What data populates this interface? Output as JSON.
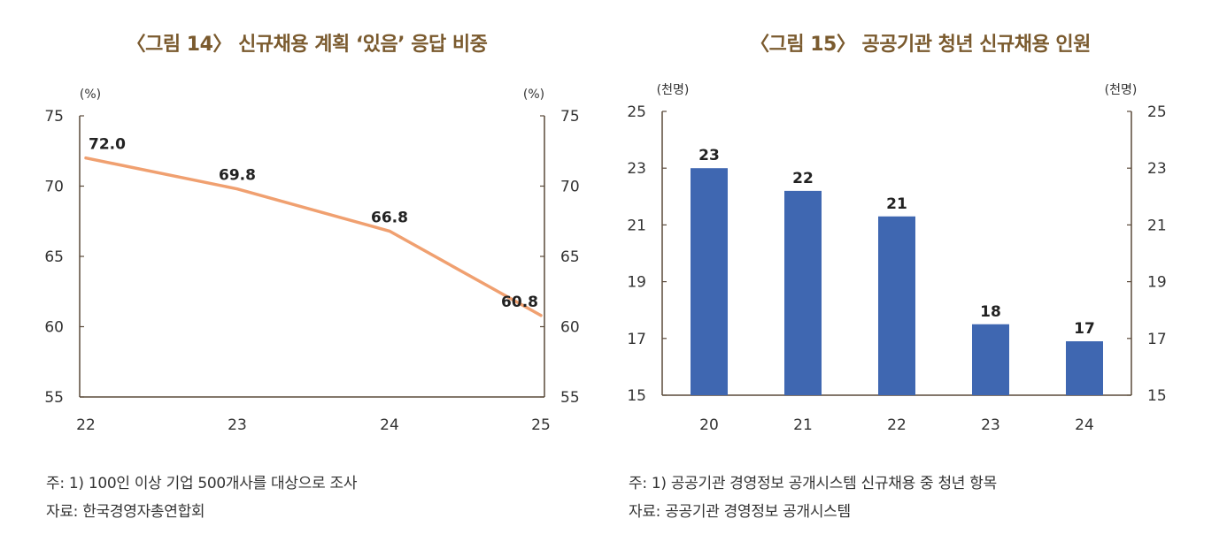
{
  "charts": [
    {
      "title": "〈그림 14〉 신규채용 계획 ‘있음’ 응답 비중",
      "note1": "주: 1) 100인 이상 기업 500개사를 대상으로 조사",
      "note2": "자료: 한국경영자총연합회"
    },
    {
      "title": "〈그림 15〉 공공기관 청년 신규채용 인원",
      "note1": "주: 1) 공공기관 경영정보 공개시스템 신규채용 중 청년 항목",
      "note2": "자료: 공공기관 경영정보 공개시스템"
    }
  ],
  "chart_data": [
    {
      "type": "line",
      "title": "〈그림 14〉 신규채용 계획 ‘있음’ 응답 비중",
      "x": [
        "22",
        "23",
        "24",
        "25"
      ],
      "series": [
        {
          "values": [
            72.0,
            69.8,
            66.8,
            60.8
          ],
          "labels": [
            "72.0",
            "69.8",
            "66.8",
            "60.8"
          ],
          "color": "#f0a070"
        }
      ],
      "yunit_left": "(%)",
      "yunit_right": "(%)",
      "ylim": [
        55,
        75
      ],
      "yticks": [
        "55",
        "60",
        "65",
        "70",
        "75"
      ],
      "grid": false,
      "legend": "none"
    },
    {
      "type": "bar",
      "title": "〈그림 15〉 공공기관 청년 신규채용 인원",
      "categories": [
        "20",
        "21",
        "22",
        "23",
        "24"
      ],
      "series": [
        {
          "values": [
            23.0,
            22.2,
            21.3,
            17.5,
            16.9
          ],
          "labels": [
            "23",
            "22",
            "21",
            "18",
            "17"
          ],
          "color": "#3f67b1"
        }
      ],
      "yunit_left": "(천명)",
      "yunit_right": "(천명)",
      "ylim": [
        15,
        25
      ],
      "yticks": [
        "15",
        "17",
        "19",
        "21",
        "23",
        "25"
      ],
      "grid": false,
      "legend": "none"
    }
  ]
}
